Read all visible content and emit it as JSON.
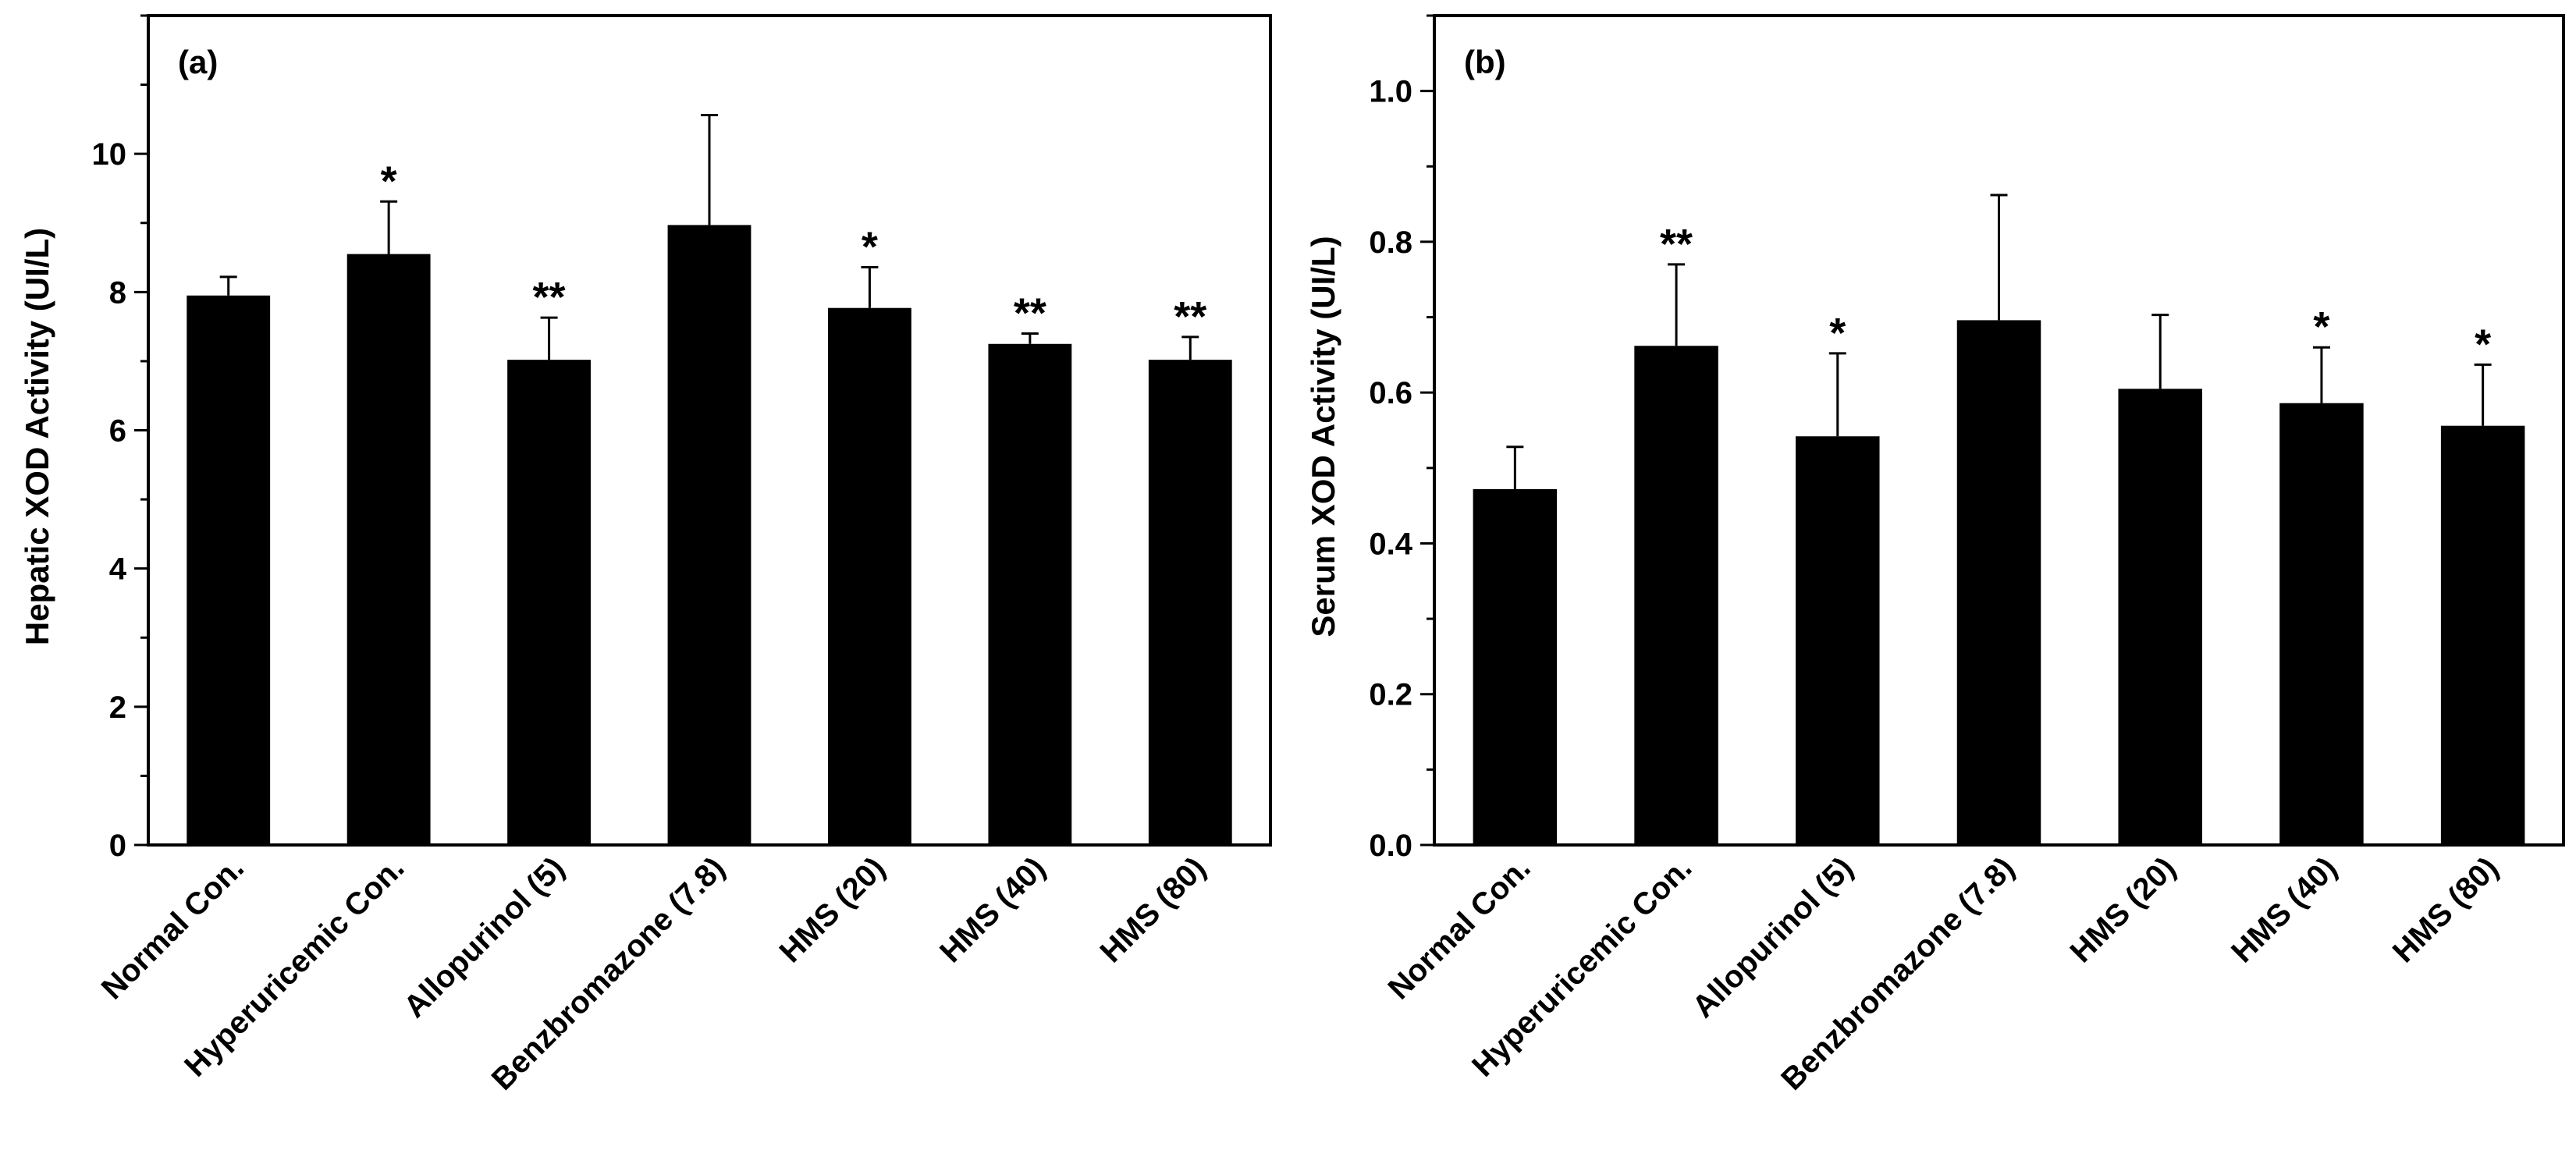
{
  "chart_data": [
    {
      "type": "bar",
      "panel_label": "(a)",
      "title": "",
      "xlabel": "",
      "ylabel": "Hepatic XOD Activity (UI/L)",
      "ylim": [
        0,
        12
      ],
      "y_major_ticks": [
        0,
        2,
        4,
        6,
        8,
        10
      ],
      "y_tick_labels": [
        "0",
        "2",
        "4",
        "6",
        "8",
        "10"
      ],
      "y_minor_step": 1,
      "grid": false,
      "bar_color": "#000000",
      "categories": [
        "Normal Con.",
        "Hyperuricemic Con.",
        "Allopurinol (5)",
        "Benzbromazone (7.8)",
        "HMS (20)",
        "HMS (40)",
        "HMS (80)"
      ],
      "values": [
        7.95,
        8.55,
        7.02,
        8.97,
        7.77,
        7.25,
        7.02
      ],
      "errors": [
        0.27,
        0.76,
        0.61,
        1.59,
        0.59,
        0.15,
        0.33
      ],
      "significance": [
        "",
        "*",
        "**",
        "",
        "*",
        "**",
        "**"
      ]
    },
    {
      "type": "bar",
      "panel_label": "(b)",
      "title": "",
      "xlabel": "",
      "ylabel": "Serum XOD Activity (UI/L)",
      "ylim": [
        0,
        1.1
      ],
      "y_major_ticks": [
        0,
        0.2,
        0.4,
        0.6,
        0.8,
        1.0
      ],
      "y_tick_labels": [
        "0.0",
        "0.2",
        "0.4",
        "0.6",
        "0.8",
        "1.0"
      ],
      "y_minor_step": 0.1,
      "grid": false,
      "bar_color": "#000000",
      "categories": [
        "Normal Con.",
        "Hyperuricemic Con.",
        "Allopurinol (5)",
        "Benzbromazone (7.8)",
        "HMS (20)",
        "HMS (40)",
        "HMS (80)"
      ],
      "values": [
        0.472,
        0.662,
        0.542,
        0.696,
        0.605,
        0.586,
        0.556
      ],
      "errors": [
        0.056,
        0.108,
        0.11,
        0.166,
        0.098,
        0.074,
        0.081
      ],
      "significance": [
        "",
        "**",
        "*",
        "",
        "",
        "*",
        "*"
      ]
    }
  ]
}
